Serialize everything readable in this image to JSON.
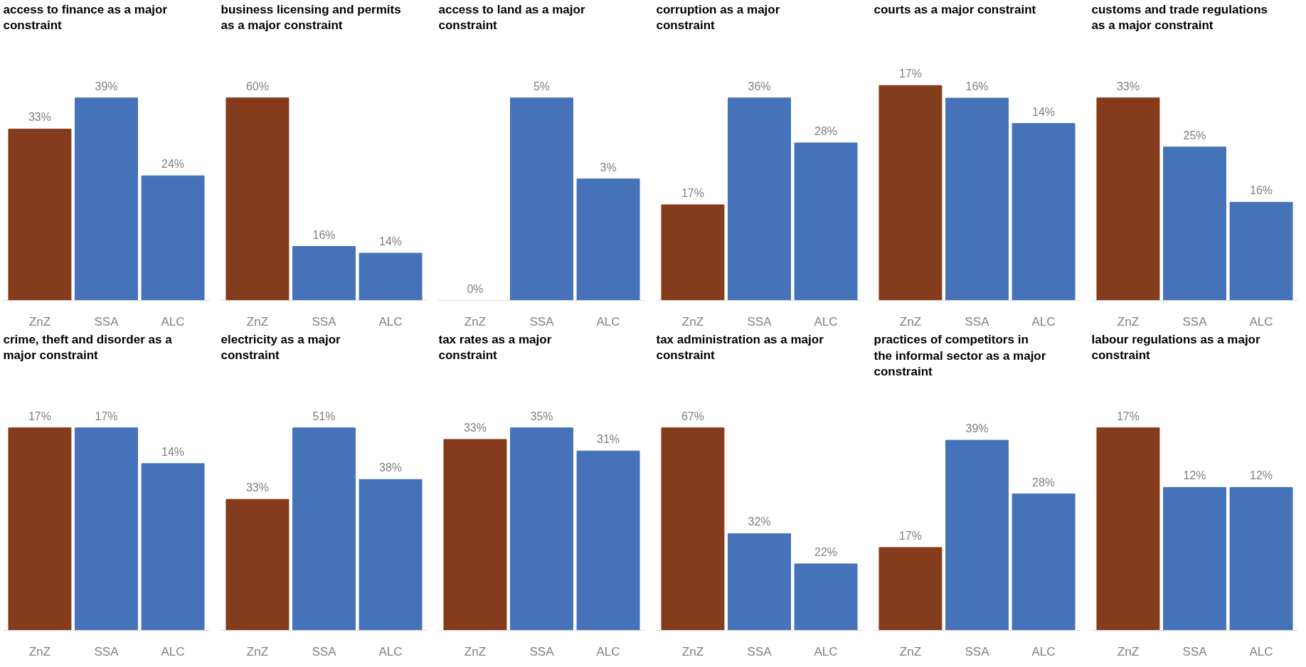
{
  "chart_data": [
    {
      "type": "bar",
      "title": "access to finance as a major constraint",
      "categories": [
        "ZnZ",
        "SSA",
        "ALC"
      ],
      "values": [
        33,
        39,
        24
      ],
      "value_labels": [
        "33%",
        "39%",
        "24%"
      ],
      "colors": [
        "#843c1c",
        "#4672ba",
        "#4672ba"
      ]
    },
    {
      "type": "bar",
      "title": "business licensing and permits as a major constraint",
      "categories": [
        "ZnZ",
        "SSA",
        "ALC"
      ],
      "values": [
        60,
        16,
        14
      ],
      "value_labels": [
        "60%",
        "16%",
        "14%"
      ],
      "colors": [
        "#843c1c",
        "#4672ba",
        "#4672ba"
      ]
    },
    {
      "type": "bar",
      "title": "access to land as a major constraint",
      "categories": [
        "ZnZ",
        "SSA",
        "ALC"
      ],
      "values": [
        0,
        5,
        3
      ],
      "value_labels": [
        "0%",
        "5%",
        "3%"
      ],
      "colors": [
        "#843c1c",
        "#4672ba",
        "#4672ba"
      ]
    },
    {
      "type": "bar",
      "title": "corruption as a major constraint",
      "categories": [
        "ZnZ",
        "SSA",
        "ALC"
      ],
      "values": [
        17,
        36,
        28
      ],
      "value_labels": [
        "17%",
        "36%",
        "28%"
      ],
      "colors": [
        "#843c1c",
        "#4672ba",
        "#4672ba"
      ]
    },
    {
      "type": "bar",
      "title": "courts as a major constraint",
      "categories": [
        "ZnZ",
        "SSA",
        "ALC"
      ],
      "values": [
        17,
        16,
        14
      ],
      "value_labels": [
        "17%",
        "16%",
        "14%"
      ],
      "colors": [
        "#843c1c",
        "#4672ba",
        "#4672ba"
      ]
    },
    {
      "type": "bar",
      "title": "customs and trade regulations as a major constraint",
      "categories": [
        "ZnZ",
        "SSA",
        "ALC"
      ],
      "values": [
        33,
        25,
        16
      ],
      "value_labels": [
        "33%",
        "25%",
        "16%"
      ],
      "colors": [
        "#843c1c",
        "#4672ba",
        "#4672ba"
      ]
    },
    {
      "type": "bar",
      "title": "crime, theft and disorder as a major constraint",
      "categories": [
        "ZnZ",
        "SSA",
        "ALC"
      ],
      "values": [
        17,
        17,
        14
      ],
      "value_labels": [
        "17%",
        "17%",
        "14%"
      ],
      "colors": [
        "#843c1c",
        "#4672ba",
        "#4672ba"
      ]
    },
    {
      "type": "bar",
      "title": "electricity as a major constraint",
      "categories": [
        "ZnZ",
        "SSA",
        "ALC"
      ],
      "values": [
        33,
        51,
        38
      ],
      "value_labels": [
        "33%",
        "51%",
        "38%"
      ],
      "colors": [
        "#843c1c",
        "#4672ba",
        "#4672ba"
      ]
    },
    {
      "type": "bar",
      "title": "tax rates as a major constraint",
      "categories": [
        "ZnZ",
        "SSA",
        "ALC"
      ],
      "values": [
        33,
        35,
        31
      ],
      "value_labels": [
        "33%",
        "35%",
        "31%"
      ],
      "colors": [
        "#843c1c",
        "#4672ba",
        "#4672ba"
      ]
    },
    {
      "type": "bar",
      "title": "tax administration as a major constraint",
      "categories": [
        "ZnZ",
        "SSA",
        "ALC"
      ],
      "values": [
        67,
        32,
        22
      ],
      "value_labels": [
        "67%",
        "32%",
        "22%"
      ],
      "colors": [
        "#843c1c",
        "#4672ba",
        "#4672ba"
      ]
    },
    {
      "type": "bar",
      "title": "practices of competitors in the informal sector as a major constraint",
      "categories": [
        "ZnZ",
        "SSA",
        "ALC"
      ],
      "values": [
        17,
        39,
        28
      ],
      "value_labels": [
        "17%",
        "39%",
        "28%"
      ],
      "colors": [
        "#843c1c",
        "#4672ba",
        "#4672ba"
      ]
    },
    {
      "type": "bar",
      "title": "labour regulations as a major constraint",
      "categories": [
        "ZnZ",
        "SSA",
        "ALC"
      ],
      "values": [
        17,
        12,
        12
      ],
      "value_labels": [
        "17%",
        "12%",
        "12%"
      ],
      "colors": [
        "#843c1c",
        "#4672ba",
        "#4672ba"
      ]
    }
  ]
}
